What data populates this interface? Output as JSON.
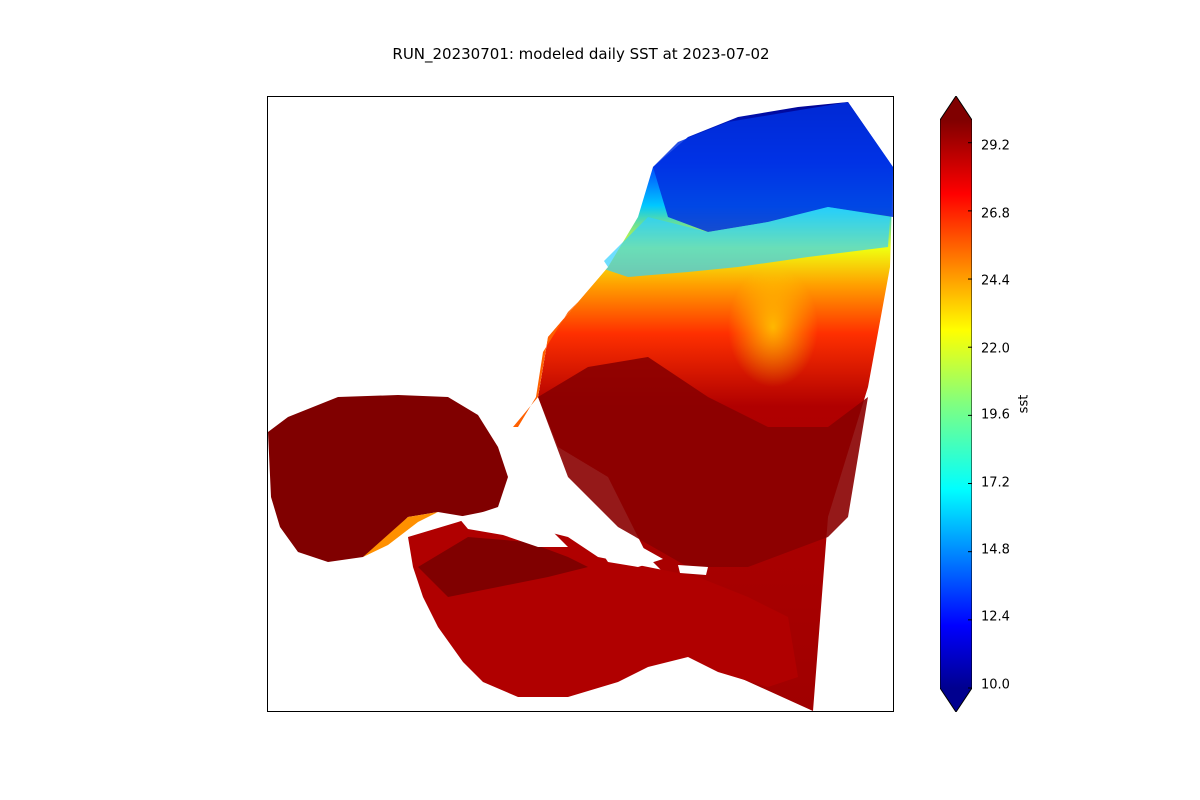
{
  "title": "RUN_20230701: modeled daily SST at 2023-07-02",
  "colorbar": {
    "label": "sst",
    "colormap": "jet",
    "min": 10.0,
    "max": 30.0,
    "extend": "both",
    "ticks": [
      "10.0",
      "12.4",
      "14.8",
      "17.2",
      "19.6",
      "22.0",
      "24.4",
      "26.8",
      "29.2"
    ]
  },
  "colors": {
    "warm": "#7f0000",
    "hot": "#c00000",
    "orange": "#ff8000",
    "yellow": "#ffff00",
    "cyan": "#00e0ff",
    "blue": "#0050ff",
    "navy": "#00008f"
  }
}
